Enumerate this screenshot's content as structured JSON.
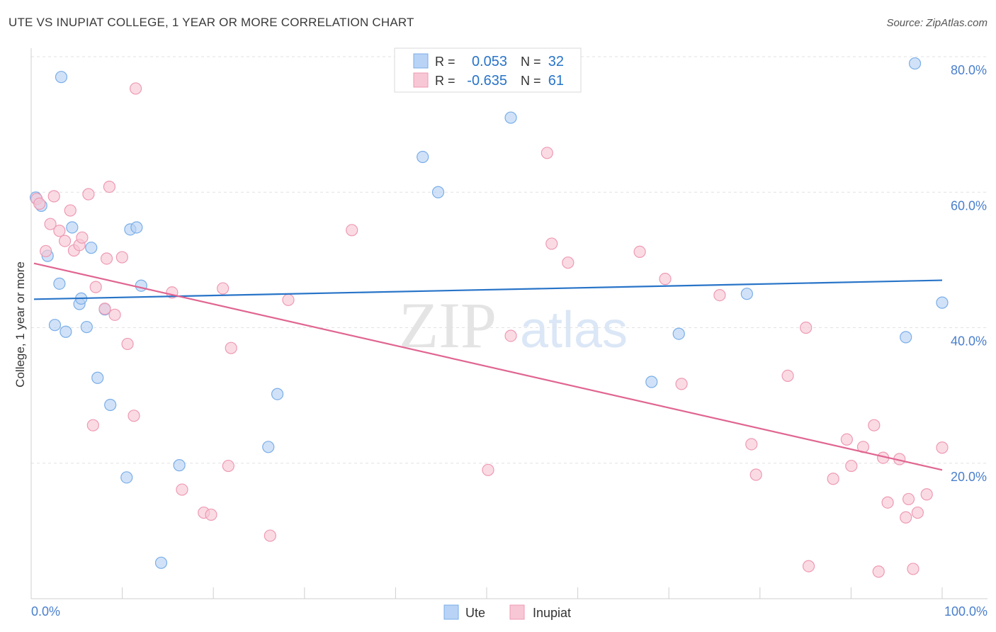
{
  "header": {
    "title": "UTE VS INUPIAT COLLEGE, 1 YEAR OR MORE CORRELATION CHART",
    "source": "Source: ZipAtlas.com"
  },
  "watermark": {
    "zip": "ZIP",
    "atlas": "atlas"
  },
  "colors": {
    "ute_fill": "#b8d3f5",
    "ute_stroke": "#7aaee8",
    "ute_line": "#2874c8",
    "inupiat_fill": "#f8c7d6",
    "inupiat_stroke": "#ee9ab3",
    "inupiat_line": "#e06591",
    "tick_label": "#4a7fcc",
    "grid": "#e2e2e2"
  },
  "legend": {
    "rows": [
      {
        "r_label": "R =",
        "r_value": "0.053",
        "n_label": "N =",
        "n_value": "32"
      },
      {
        "r_label": "R =",
        "r_value": "-0.635",
        "n_label": "N =",
        "n_value": "61"
      }
    ]
  },
  "bottom_legend": {
    "ute": "Ute",
    "inupiat": "Inupiat"
  },
  "chart_data": {
    "type": "scatter",
    "title": "UTE VS INUPIAT COLLEGE, 1 YEAR OR MORE CORRELATION CHART",
    "xlabel": "",
    "ylabel": "College, 1 year or more",
    "xlim": [
      0,
      100
    ],
    "ylim": [
      0,
      80
    ],
    "x_tick_labels": [
      "0.0%",
      "100.0%"
    ],
    "y_ticks": [
      20,
      40,
      60,
      80
    ],
    "y_tick_labels": [
      "20.0%",
      "40.0%",
      "60.0%",
      "80.0%"
    ],
    "grid": true,
    "series": [
      {
        "name": "Ute",
        "trend": {
          "x0": 0,
          "y0": 44.2,
          "x1": 100,
          "y1": 47.0
        },
        "points": [
          [
            0.2,
            59.2
          ],
          [
            0.8,
            58.0
          ],
          [
            1.5,
            50.6
          ],
          [
            2.3,
            40.4
          ],
          [
            2.8,
            46.5
          ],
          [
            3.0,
            77.0
          ],
          [
            3.5,
            39.4
          ],
          [
            4.2,
            54.8
          ],
          [
            5.0,
            43.5
          ],
          [
            5.2,
            44.3
          ],
          [
            5.8,
            40.1
          ],
          [
            6.3,
            51.8
          ],
          [
            7.0,
            32.6
          ],
          [
            7.8,
            42.7
          ],
          [
            8.4,
            28.6
          ],
          [
            10.2,
            17.9
          ],
          [
            10.6,
            54.5
          ],
          [
            11.3,
            54.8
          ],
          [
            11.8,
            46.2
          ],
          [
            14.0,
            5.3
          ],
          [
            16.0,
            19.7
          ],
          [
            25.8,
            22.4
          ],
          [
            26.8,
            30.2
          ],
          [
            42.8,
            65.2
          ],
          [
            44.5,
            60.0
          ],
          [
            52.5,
            71.0
          ],
          [
            68.0,
            32.0
          ],
          [
            71.0,
            39.1
          ],
          [
            78.5,
            45.0
          ],
          [
            96.0,
            38.6
          ],
          [
            97.0,
            79.0
          ],
          [
            100.0,
            43.7
          ]
        ]
      },
      {
        "name": "Inupiat",
        "trend": {
          "x0": 0,
          "y0": 49.5,
          "x1": 100,
          "y1": 19.0
        },
        "points": [
          [
            0.3,
            59.0
          ],
          [
            0.6,
            58.3
          ],
          [
            1.3,
            51.3
          ],
          [
            1.8,
            55.3
          ],
          [
            2.2,
            59.4
          ],
          [
            2.8,
            54.3
          ],
          [
            3.4,
            52.8
          ],
          [
            4.0,
            57.3
          ],
          [
            4.4,
            51.4
          ],
          [
            5.0,
            52.2
          ],
          [
            5.3,
            53.3
          ],
          [
            6.0,
            59.7
          ],
          [
            6.5,
            25.6
          ],
          [
            6.8,
            46.0
          ],
          [
            7.8,
            42.8
          ],
          [
            8.0,
            50.2
          ],
          [
            8.3,
            60.8
          ],
          [
            8.9,
            41.9
          ],
          [
            9.7,
            50.4
          ],
          [
            10.3,
            37.6
          ],
          [
            11.0,
            27.0
          ],
          [
            11.2,
            75.3
          ],
          [
            15.2,
            45.2
          ],
          [
            16.3,
            16.1
          ],
          [
            18.7,
            12.7
          ],
          [
            19.5,
            12.4
          ],
          [
            20.8,
            45.8
          ],
          [
            21.4,
            19.6
          ],
          [
            21.7,
            37.0
          ],
          [
            26.0,
            9.3
          ],
          [
            28.0,
            44.1
          ],
          [
            35.0,
            54.4
          ],
          [
            50.0,
            19.0
          ],
          [
            52.5,
            38.8
          ],
          [
            56.5,
            65.8
          ],
          [
            57.0,
            52.4
          ],
          [
            58.8,
            49.6
          ],
          [
            66.7,
            51.2
          ],
          [
            69.5,
            47.2
          ],
          [
            71.3,
            31.7
          ],
          [
            75.5,
            44.8
          ],
          [
            79.0,
            22.8
          ],
          [
            79.5,
            18.3
          ],
          [
            83.0,
            32.9
          ],
          [
            85.0,
            40.0
          ],
          [
            85.3,
            4.8
          ],
          [
            88.0,
            17.7
          ],
          [
            89.5,
            23.5
          ],
          [
            90.0,
            19.6
          ],
          [
            91.3,
            22.4
          ],
          [
            92.5,
            25.6
          ],
          [
            93.0,
            4.0
          ],
          [
            93.5,
            20.8
          ],
          [
            94.0,
            14.2
          ],
          [
            95.3,
            20.6
          ],
          [
            96.0,
            12.0
          ],
          [
            96.3,
            14.7
          ],
          [
            96.8,
            4.4
          ],
          [
            97.3,
            12.7
          ],
          [
            98.3,
            15.4
          ],
          [
            100.0,
            22.3
          ]
        ]
      }
    ]
  }
}
